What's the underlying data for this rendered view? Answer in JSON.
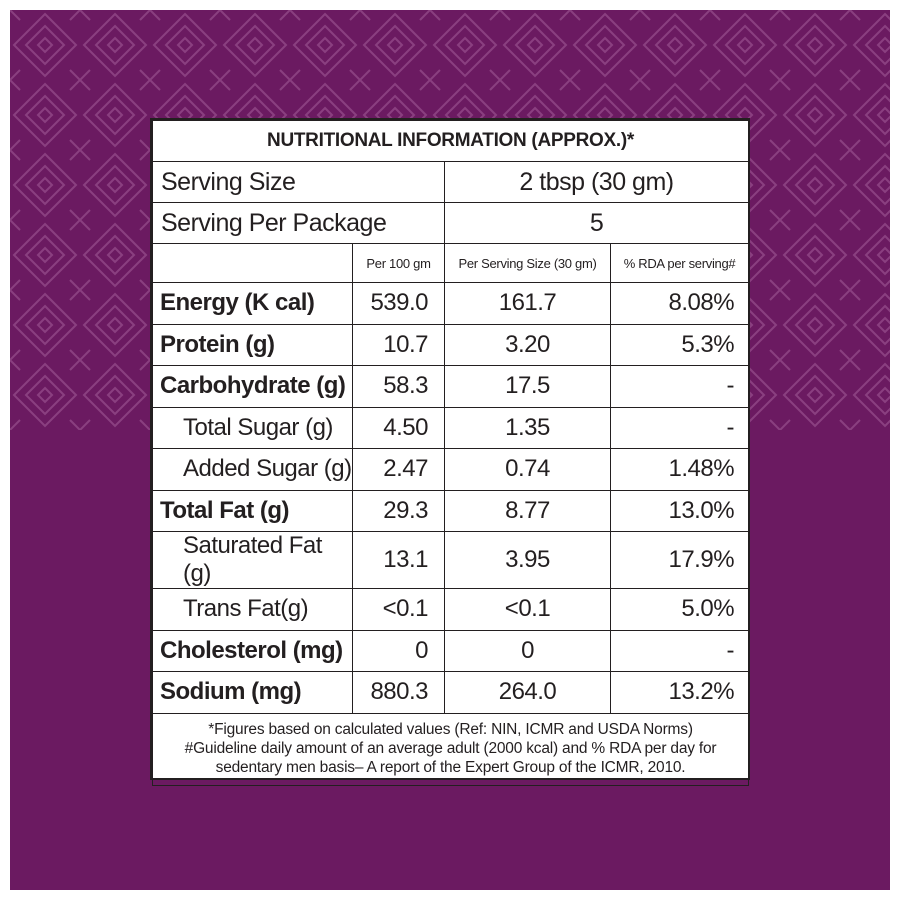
{
  "colors": {
    "background": "#6b1a61",
    "pattern_line": "#8a3f80",
    "panel": "#ffffff",
    "ink": "#231f20"
  },
  "title": "NUTRITIONAL INFORMATION (APPROX.)*",
  "serving_size": {
    "label": "Serving Size",
    "value": "2 tbsp (30 gm)"
  },
  "serving_per_package": {
    "label": "Serving Per Package",
    "value": "5"
  },
  "headers": {
    "per_100": "Per 100 gm",
    "per_serving": "Per Serving Size (30 gm)",
    "rda": "% RDA per serving#"
  },
  "rows": [
    {
      "name": "Energy (K cal)",
      "per_100": "539.0",
      "per_serving": "161.7",
      "rda": "8.08%"
    },
    {
      "name": "Protein (g)",
      "per_100": "10.7",
      "per_serving": "3.20",
      "rda": "5.3%"
    },
    {
      "name": "Carbohydrate (g)",
      "per_100": "58.3",
      "per_serving": "17.5",
      "rda": "-"
    },
    {
      "name": "Total Sugar (g)",
      "per_100": "4.50",
      "per_serving": "1.35",
      "rda": "-"
    },
    {
      "name": "Added Sugar (g)",
      "per_100": "2.47",
      "per_serving": "0.74",
      "rda": "1.48%"
    },
    {
      "name": "Total Fat (g)",
      "per_100": "29.3",
      "per_serving": "8.77",
      "rda": "13.0%"
    },
    {
      "name": "Saturated Fat (g)",
      "per_100": "13.1",
      "per_serving": "3.95",
      "rda": "17.9%"
    },
    {
      "name": "Trans Fat(g)",
      "per_100": "<0.1",
      "per_serving": "<0.1",
      "rda": "5.0%"
    },
    {
      "name": "Cholesterol (mg)",
      "per_100": "0",
      "per_serving": "0",
      "rda": "-"
    },
    {
      "name": "Sodium (mg)",
      "per_100": "880.3",
      "per_serving": "264.0",
      "rda": "13.2%"
    }
  ],
  "notes": {
    "line1": "*Figures based on calculated values (Ref: NIN, ICMR and USDA Norms)",
    "line2": "#Guideline daily amount of an average adult (2000 kcal) and % RDA per day for",
    "line3": "sedentary men basis– A report of the Expert Group of the ICMR, 2010."
  }
}
